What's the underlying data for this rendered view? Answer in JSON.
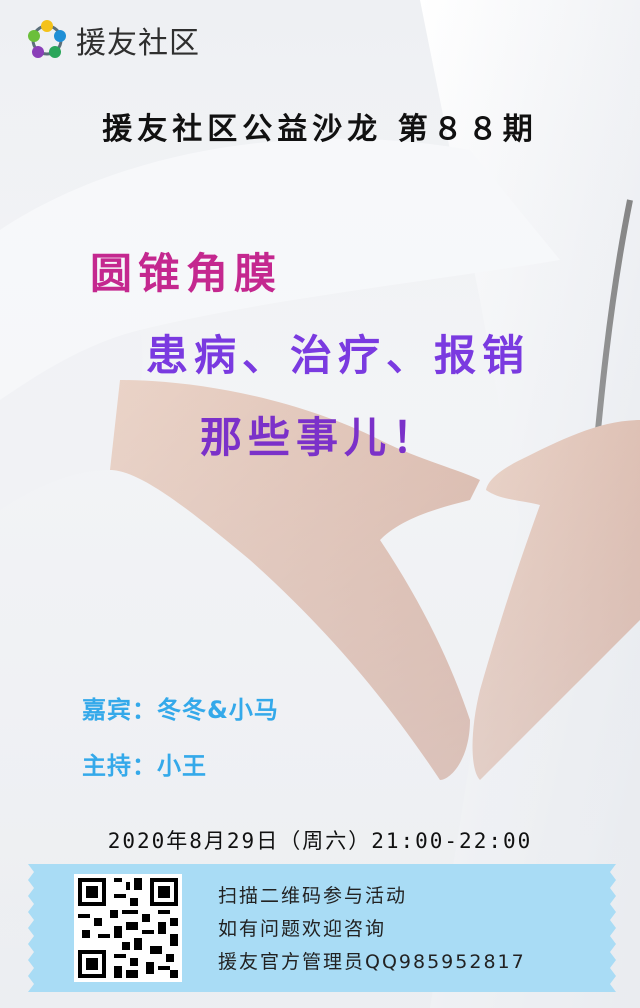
{
  "logo": {
    "text": "援友社区",
    "icon": "community-logo-icon"
  },
  "salon": {
    "title": "援友社区公益沙龙 第８８期"
  },
  "headline": {
    "line1": "圆锥角膜",
    "line2": "患病、治疗、报销",
    "line3": "那些事儿！"
  },
  "people": {
    "guest": "嘉宾：冬冬&小马",
    "host": "主持：小王"
  },
  "event": {
    "datetime": "2020年8月29日（周六）21:00-22:00"
  },
  "info": {
    "qr_icon": "qr-code-icon",
    "lines": [
      "扫描二维码参与活动",
      "如有问题欢迎咨询",
      "援友官方管理员QQ985952817"
    ]
  },
  "colors": {
    "headline_pink": "#c4288f",
    "headline_purple": "#7a3ae0",
    "people_blue": "#34a9ea",
    "info_box": "#a9dcf5"
  }
}
